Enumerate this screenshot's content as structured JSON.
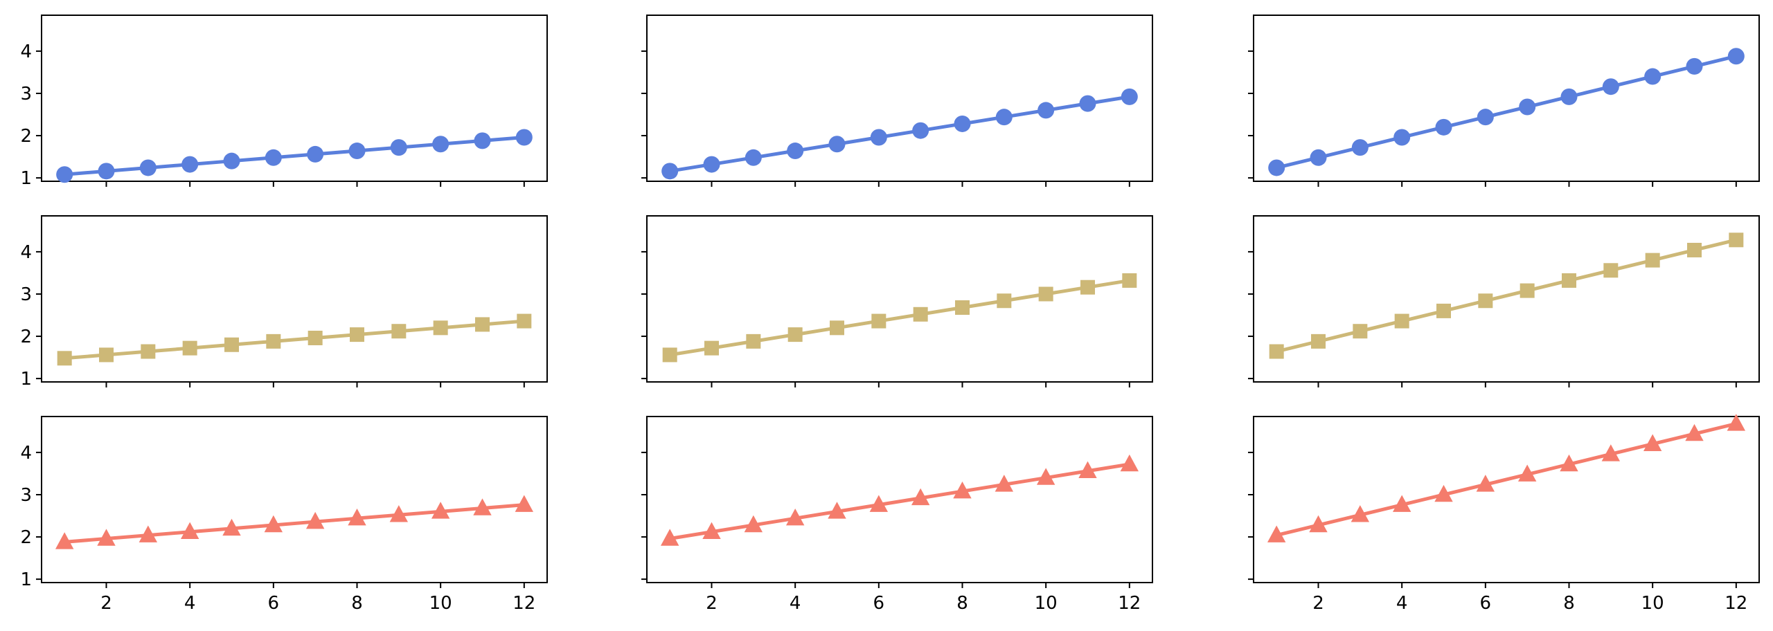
{
  "chart_data": {
    "type": "line",
    "grid": false,
    "layout": {
      "rows": 3,
      "cols": 3
    },
    "x": [
      1,
      2,
      3,
      4,
      5,
      6,
      7,
      8,
      9,
      10,
      11,
      12
    ],
    "xlim": [
      0.45,
      12.55
    ],
    "ylim": [
      0.92,
      4.85
    ],
    "x_ticks": [
      2,
      4,
      6,
      8,
      10,
      12
    ],
    "y_ticks": [
      1,
      2,
      3,
      4
    ],
    "row_styles": [
      {
        "color": "#5a7fdc",
        "marker": "circle"
      },
      {
        "color": "#cdb877",
        "marker": "square"
      },
      {
        "color": "#f47c6c",
        "marker": "triangle"
      }
    ],
    "panels": [
      {
        "row": 0,
        "col": 0,
        "values": [
          1.08,
          1.16,
          1.24,
          1.32,
          1.4,
          1.48,
          1.56,
          1.64,
          1.72,
          1.8,
          1.88,
          1.96
        ]
      },
      {
        "row": 0,
        "col": 1,
        "values": [
          1.16,
          1.32,
          1.48,
          1.64,
          1.8,
          1.96,
          2.12,
          2.28,
          2.44,
          2.6,
          2.76,
          2.92
        ]
      },
      {
        "row": 0,
        "col": 2,
        "values": [
          1.24,
          1.48,
          1.72,
          1.96,
          2.2,
          2.44,
          2.68,
          2.92,
          3.16,
          3.4,
          3.64,
          3.88
        ]
      },
      {
        "row": 1,
        "col": 0,
        "values": [
          1.48,
          1.56,
          1.64,
          1.72,
          1.8,
          1.88,
          1.96,
          2.04,
          2.12,
          2.2,
          2.28,
          2.36
        ]
      },
      {
        "row": 1,
        "col": 1,
        "values": [
          1.56,
          1.72,
          1.88,
          2.04,
          2.2,
          2.36,
          2.52,
          2.68,
          2.84,
          3.0,
          3.16,
          3.32
        ]
      },
      {
        "row": 1,
        "col": 2,
        "values": [
          1.64,
          1.88,
          2.12,
          2.36,
          2.6,
          2.84,
          3.08,
          3.32,
          3.56,
          3.8,
          4.04,
          4.28
        ]
      },
      {
        "row": 2,
        "col": 0,
        "values": [
          1.88,
          1.96,
          2.04,
          2.12,
          2.2,
          2.28,
          2.36,
          2.44,
          2.52,
          2.6,
          2.68,
          2.76
        ]
      },
      {
        "row": 2,
        "col": 1,
        "values": [
          1.96,
          2.12,
          2.28,
          2.44,
          2.6,
          2.76,
          2.92,
          3.08,
          3.24,
          3.4,
          3.56,
          3.72
        ]
      },
      {
        "row": 2,
        "col": 2,
        "values": [
          2.04,
          2.28,
          2.52,
          2.76,
          3.0,
          3.24,
          3.48,
          3.72,
          3.96,
          4.2,
          4.44,
          4.68
        ]
      }
    ]
  }
}
